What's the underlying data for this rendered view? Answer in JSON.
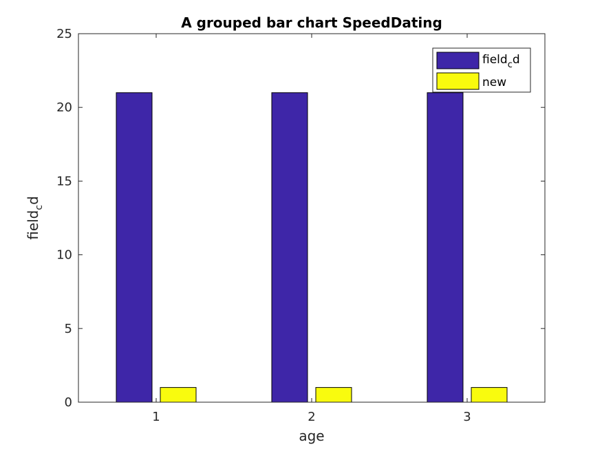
{
  "chart_data": {
    "type": "bar",
    "title": "A grouped bar chart SpeedDating",
    "xlabel": "age",
    "ylabel": {
      "base": "field",
      "sub": "c",
      "tail": "d"
    },
    "categories": [
      "1",
      "2",
      "3"
    ],
    "series": [
      {
        "name": {
          "base": "field",
          "sub": "c",
          "tail": "d"
        },
        "values": [
          21,
          21,
          21
        ],
        "color": "#3e26a8"
      },
      {
        "name": {
          "base": "new",
          "sub": "",
          "tail": ""
        },
        "values": [
          1,
          1,
          1
        ],
        "color": "#f9fb0e"
      }
    ],
    "ylim": [
      0,
      25
    ],
    "yticks": [
      0,
      5,
      10,
      15,
      20,
      25
    ],
    "grid": false,
    "legend_position": "top-right"
  }
}
